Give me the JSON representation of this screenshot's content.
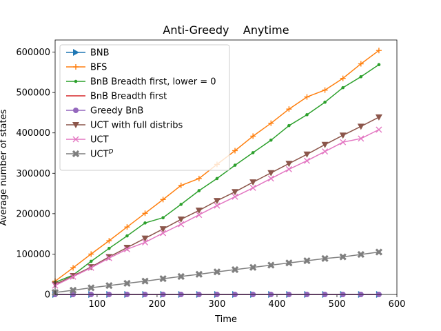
{
  "chart_data": {
    "type": "line",
    "title": "Anti-Greedy    Anytime",
    "xlabel": "Time",
    "ylabel": "Average number of states",
    "xlim": [
      30,
      600
    ],
    "ylim": [
      0,
      630000
    ],
    "xticks": [
      100,
      200,
      300,
      400,
      500,
      600
    ],
    "yticks": [
      0,
      100000,
      200000,
      300000,
      400000,
      500000,
      600000
    ],
    "grid": false,
    "legend_position": "upper-left",
    "x": [
      30,
      60,
      90,
      120,
      150,
      180,
      210,
      240,
      270,
      300,
      330,
      360,
      390,
      420,
      450,
      480,
      510,
      540,
      570
    ],
    "series": [
      {
        "name": "BNB",
        "color": "#1f77b4",
        "marker": "triangle-right",
        "values": [
          0,
          0,
          0,
          0,
          0,
          0,
          0,
          0,
          0,
          0,
          0,
          0,
          0,
          0,
          0,
          0,
          0,
          0,
          0
        ]
      },
      {
        "name": "BFS",
        "color": "#ff7f0e",
        "marker": "plus",
        "values": [
          33000,
          66000,
          100000,
          133000,
          167000,
          201000,
          235000,
          270000,
          287000,
          322000,
          356000,
          392000,
          424000,
          459000,
          489000,
          506000,
          535000,
          571000,
          604000
        ]
      },
      {
        "name": "BnB Breadth first, lower = 0",
        "color": "#2ca02c",
        "marker": "point",
        "values": [
          30000,
          48000,
          82000,
          114000,
          145000,
          177000,
          190000,
          223000,
          257000,
          287000,
          320000,
          351000,
          382000,
          418000,
          445000,
          476000,
          512000,
          539000,
          569000
        ]
      },
      {
        "name": "BnB Breadth first",
        "color": "#d62728",
        "marker": "none",
        "values": [
          0,
          0,
          0,
          0,
          0,
          0,
          0,
          0,
          0,
          0,
          0,
          0,
          0,
          0,
          0,
          0,
          0,
          0,
          0
        ]
      },
      {
        "name": "Greedy BnB",
        "color": "#9467bd",
        "marker": "circle",
        "values": [
          0,
          0,
          0,
          0,
          0,
          0,
          0,
          0,
          0,
          0,
          0,
          0,
          0,
          0,
          0,
          0,
          0,
          0,
          0
        ]
      },
      {
        "name": "UCT with full distribs",
        "color": "#8c564b",
        "marker": "triangle-down",
        "values": [
          25000,
          46000,
          68000,
          93000,
          116000,
          139000,
          162000,
          186000,
          208000,
          232000,
          254000,
          278000,
          301000,
          324000,
          347000,
          371000,
          394000,
          416000,
          439000
        ]
      },
      {
        "name": "UCT",
        "color": "#e377c2",
        "marker": "x",
        "values": [
          22000,
          44000,
          66000,
          90000,
          112000,
          129000,
          152000,
          174000,
          197000,
          220000,
          242000,
          264000,
          287000,
          310000,
          331000,
          354000,
          377000,
          386000,
          408000
        ]
      },
      {
        "name": "UCT",
        "name_sup": "D",
        "color": "#7f7f7f",
        "marker": "x-filled",
        "values": [
          5000,
          10500,
          16500,
          22000,
          27500,
          33000,
          39000,
          44500,
          50000,
          56000,
          61500,
          67000,
          72500,
          78000,
          83500,
          89000,
          93000,
          99000,
          105000
        ]
      }
    ]
  }
}
